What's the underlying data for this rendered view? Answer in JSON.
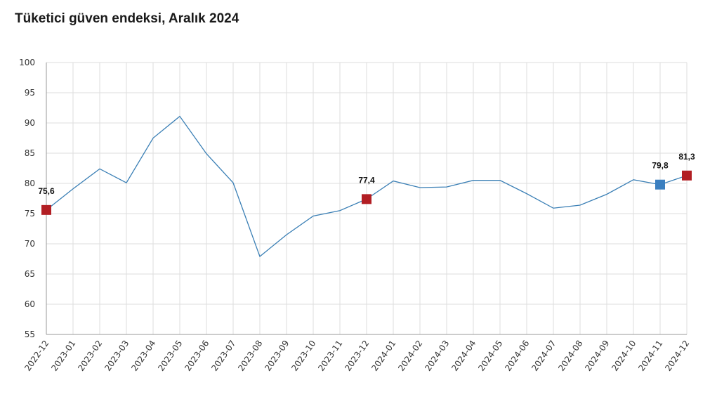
{
  "title": "Tüketici güven endeksi, Aralık 2024",
  "colors": {
    "line": "#3a7fb5",
    "highlight_red": "#b21e23",
    "highlight_blue": "#3a7fc0",
    "grid": "#dddddd"
  },
  "chart_data": {
    "type": "line",
    "title": "Tüketici güven endeksi, Aralık 2024",
    "xlabel": "",
    "ylabel": "",
    "ylim": [
      55,
      100
    ],
    "yticks": [
      55,
      60,
      65,
      70,
      75,
      80,
      85,
      90,
      95,
      100
    ],
    "grid": true,
    "categories": [
      "2022-12",
      "2023-01",
      "2023-02",
      "2023-03",
      "2023-04",
      "2023-05",
      "2023-06",
      "2023-07",
      "2023-08",
      "2023-09",
      "2023-10",
      "2023-11",
      "2023-12",
      "2024-01",
      "2024-02",
      "2024-03",
      "2024-04",
      "2024-05",
      "2024-06",
      "2024-07",
      "2024-08",
      "2024-09",
      "2024-10",
      "2024-11",
      "2024-12"
    ],
    "series": [
      {
        "values": [
          75.6,
          79.1,
          82.4,
          80.1,
          87.5,
          91.1,
          84.9,
          80.1,
          67.9,
          71.5,
          74.6,
          75.5,
          77.4,
          80.4,
          79.3,
          79.4,
          80.5,
          80.5,
          78.3,
          75.9,
          76.4,
          78.2,
          80.6,
          79.8,
          81.3
        ]
      }
    ],
    "highlights": [
      {
        "category": "2022-12",
        "value": 75.6,
        "label": "75,6",
        "color": "red"
      },
      {
        "category": "2023-12",
        "value": 77.4,
        "label": "77,4",
        "color": "red"
      },
      {
        "category": "2024-11",
        "value": 79.8,
        "label": "79,8",
        "color": "blue"
      },
      {
        "category": "2024-12",
        "value": 81.3,
        "label": "81,3",
        "color": "red"
      }
    ]
  }
}
